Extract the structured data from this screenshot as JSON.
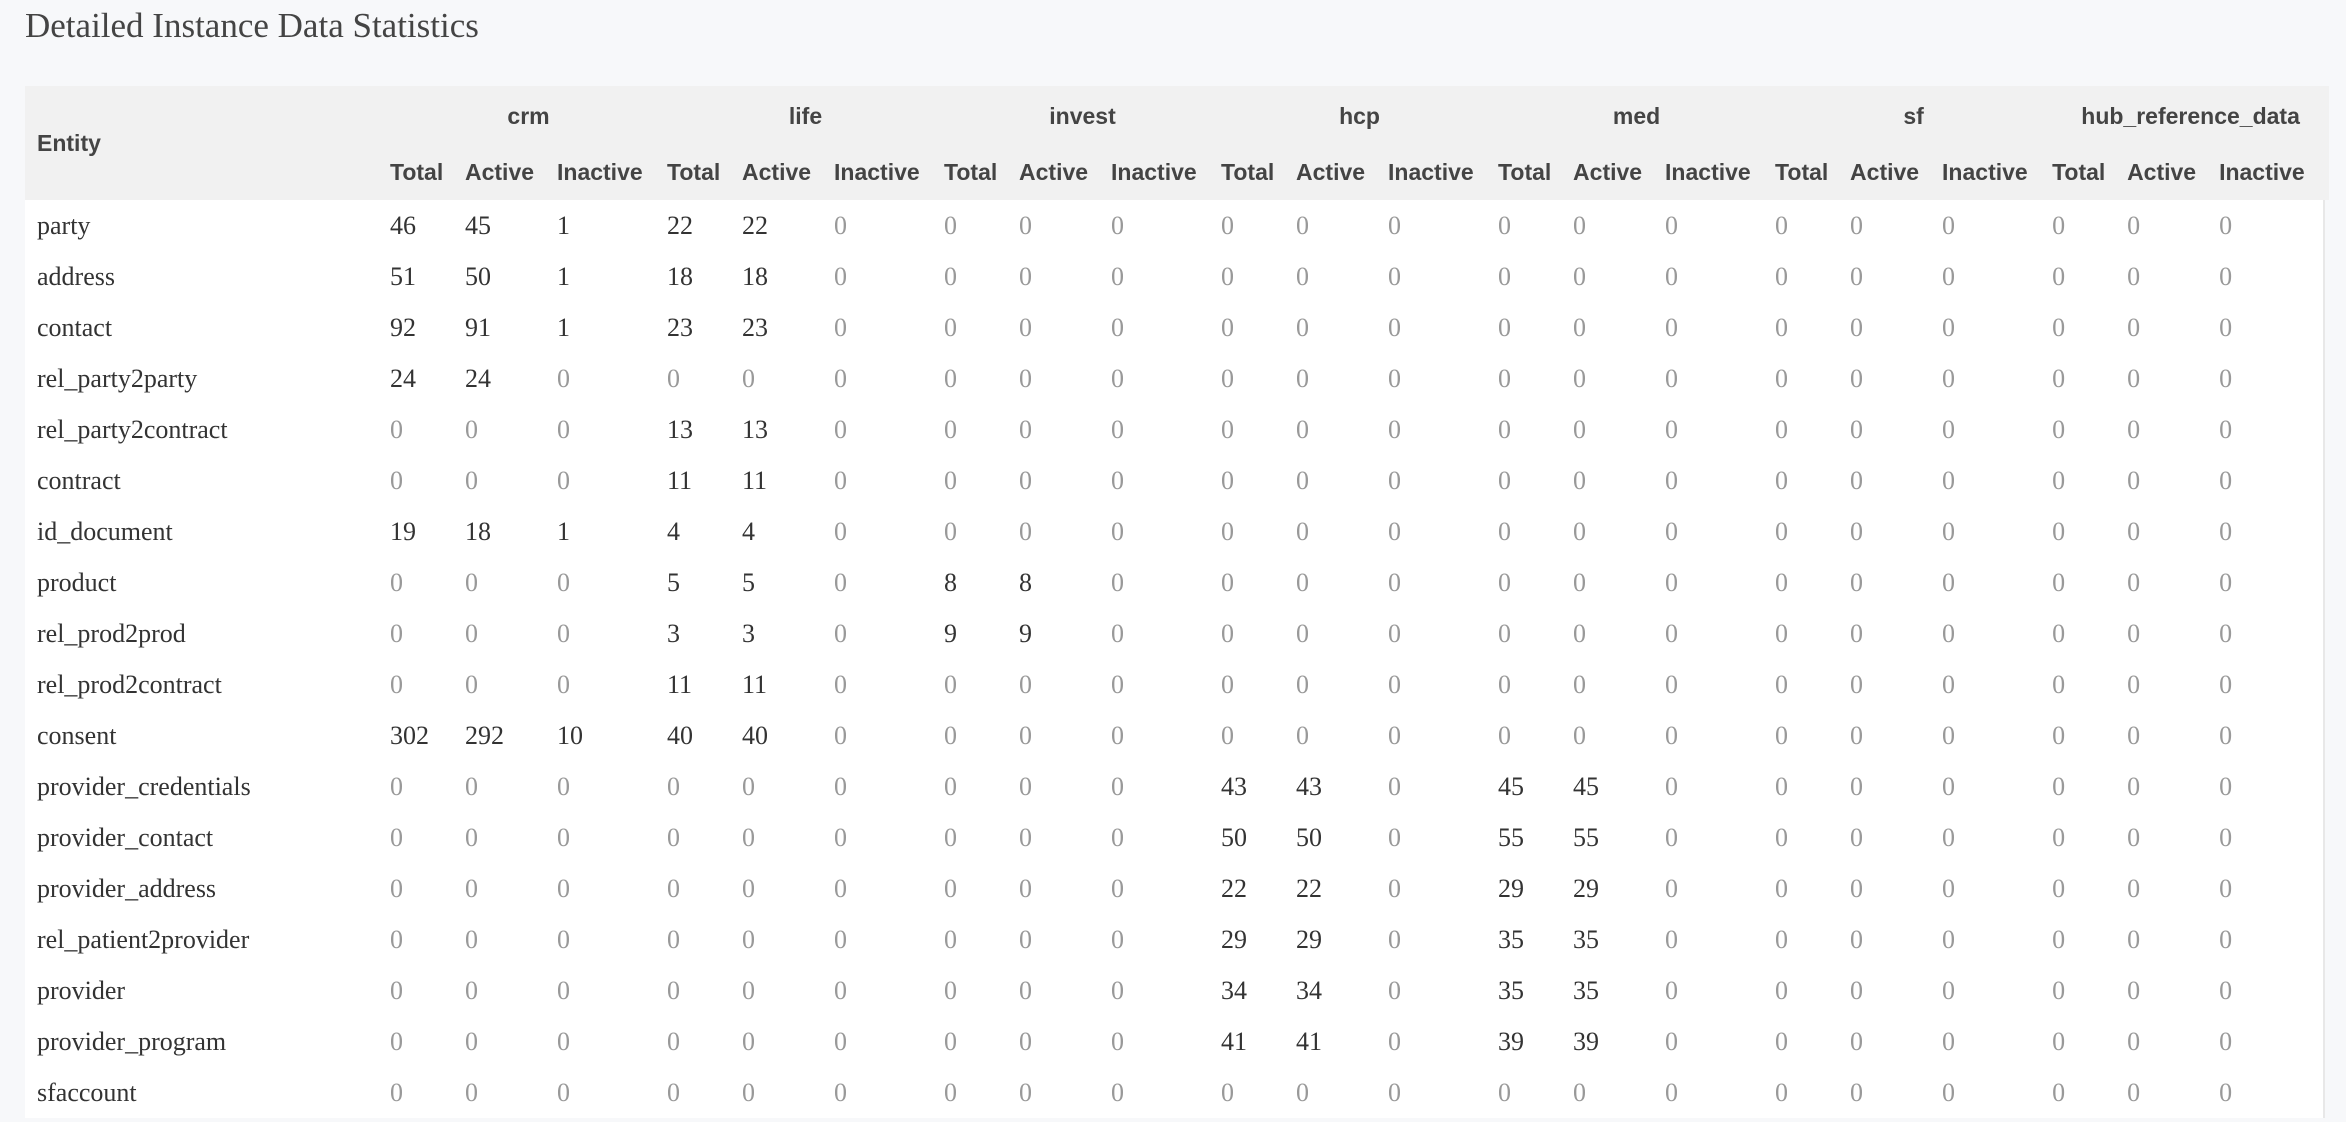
{
  "page": {
    "title": "Detailed Instance Data Statistics"
  },
  "table": {
    "entity_header": "Entity",
    "groups": [
      "crm",
      "life",
      "invest",
      "hcp",
      "med",
      "sf",
      "hub_reference_data"
    ],
    "subheaders": [
      "Total",
      "Active",
      "Inactive"
    ],
    "colors": {
      "nonzero": "#333333",
      "zero": "#999999",
      "header_bg": "#f1f1f1"
    },
    "rows": [
      {
        "entity": "party",
        "values": [
          46,
          45,
          1,
          22,
          22,
          0,
          0,
          0,
          0,
          0,
          0,
          0,
          0,
          0,
          0,
          0,
          0,
          0,
          0,
          0,
          0
        ]
      },
      {
        "entity": "address",
        "values": [
          51,
          50,
          1,
          18,
          18,
          0,
          0,
          0,
          0,
          0,
          0,
          0,
          0,
          0,
          0,
          0,
          0,
          0,
          0,
          0,
          0
        ]
      },
      {
        "entity": "contact",
        "values": [
          92,
          91,
          1,
          23,
          23,
          0,
          0,
          0,
          0,
          0,
          0,
          0,
          0,
          0,
          0,
          0,
          0,
          0,
          0,
          0,
          0
        ]
      },
      {
        "entity": "rel_party2party",
        "values": [
          24,
          24,
          0,
          0,
          0,
          0,
          0,
          0,
          0,
          0,
          0,
          0,
          0,
          0,
          0,
          0,
          0,
          0,
          0,
          0,
          0
        ]
      },
      {
        "entity": "rel_party2contract",
        "values": [
          0,
          0,
          0,
          13,
          13,
          0,
          0,
          0,
          0,
          0,
          0,
          0,
          0,
          0,
          0,
          0,
          0,
          0,
          0,
          0,
          0
        ]
      },
      {
        "entity": "contract",
        "values": [
          0,
          0,
          0,
          11,
          11,
          0,
          0,
          0,
          0,
          0,
          0,
          0,
          0,
          0,
          0,
          0,
          0,
          0,
          0,
          0,
          0
        ]
      },
      {
        "entity": "id_document",
        "values": [
          19,
          18,
          1,
          4,
          4,
          0,
          0,
          0,
          0,
          0,
          0,
          0,
          0,
          0,
          0,
          0,
          0,
          0,
          0,
          0,
          0
        ]
      },
      {
        "entity": "product",
        "values": [
          0,
          0,
          0,
          5,
          5,
          0,
          8,
          8,
          0,
          0,
          0,
          0,
          0,
          0,
          0,
          0,
          0,
          0,
          0,
          0,
          0
        ]
      },
      {
        "entity": "rel_prod2prod",
        "values": [
          0,
          0,
          0,
          3,
          3,
          0,
          9,
          9,
          0,
          0,
          0,
          0,
          0,
          0,
          0,
          0,
          0,
          0,
          0,
          0,
          0
        ]
      },
      {
        "entity": "rel_prod2contract",
        "values": [
          0,
          0,
          0,
          11,
          11,
          0,
          0,
          0,
          0,
          0,
          0,
          0,
          0,
          0,
          0,
          0,
          0,
          0,
          0,
          0,
          0
        ]
      },
      {
        "entity": "consent",
        "values": [
          302,
          292,
          10,
          40,
          40,
          0,
          0,
          0,
          0,
          0,
          0,
          0,
          0,
          0,
          0,
          0,
          0,
          0,
          0,
          0,
          0
        ]
      },
      {
        "entity": "provider_credentials",
        "values": [
          0,
          0,
          0,
          0,
          0,
          0,
          0,
          0,
          0,
          43,
          43,
          0,
          45,
          45,
          0,
          0,
          0,
          0,
          0,
          0,
          0
        ]
      },
      {
        "entity": "provider_contact",
        "values": [
          0,
          0,
          0,
          0,
          0,
          0,
          0,
          0,
          0,
          50,
          50,
          0,
          55,
          55,
          0,
          0,
          0,
          0,
          0,
          0,
          0
        ]
      },
      {
        "entity": "provider_address",
        "values": [
          0,
          0,
          0,
          0,
          0,
          0,
          0,
          0,
          0,
          22,
          22,
          0,
          29,
          29,
          0,
          0,
          0,
          0,
          0,
          0,
          0
        ]
      },
      {
        "entity": "rel_patient2provider",
        "values": [
          0,
          0,
          0,
          0,
          0,
          0,
          0,
          0,
          0,
          29,
          29,
          0,
          35,
          35,
          0,
          0,
          0,
          0,
          0,
          0,
          0
        ]
      },
      {
        "entity": "provider",
        "values": [
          0,
          0,
          0,
          0,
          0,
          0,
          0,
          0,
          0,
          34,
          34,
          0,
          35,
          35,
          0,
          0,
          0,
          0,
          0,
          0,
          0
        ]
      },
      {
        "entity": "provider_program",
        "values": [
          0,
          0,
          0,
          0,
          0,
          0,
          0,
          0,
          0,
          41,
          41,
          0,
          39,
          39,
          0,
          0,
          0,
          0,
          0,
          0,
          0
        ]
      },
      {
        "entity": "sfaccount",
        "values": [
          0,
          0,
          0,
          0,
          0,
          0,
          0,
          0,
          0,
          0,
          0,
          0,
          0,
          0,
          0,
          0,
          0,
          0,
          0,
          0,
          0
        ]
      }
    ]
  }
}
